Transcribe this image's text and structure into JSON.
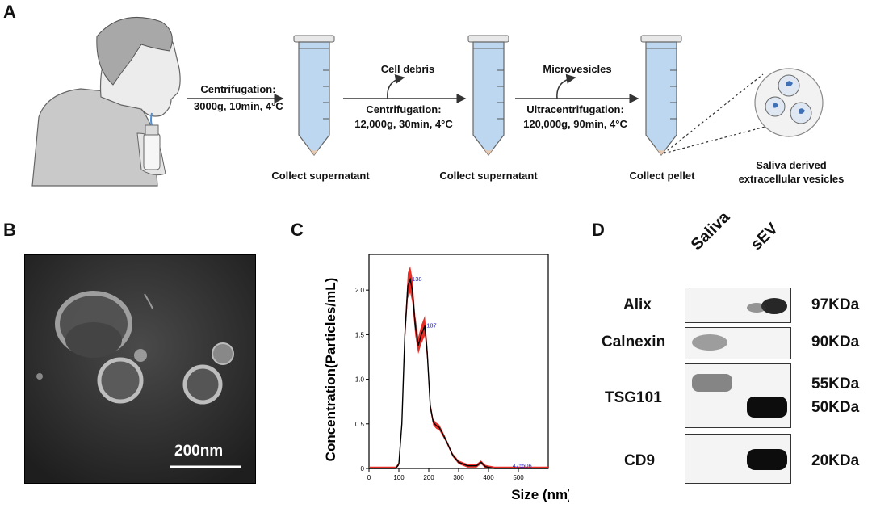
{
  "panels": {
    "a": "A",
    "b": "B",
    "c": "C",
    "d": "D"
  },
  "panel_a": {
    "step1": {
      "line1": "Centrifugation:",
      "line2": "3000g, 10min, 4°C"
    },
    "step2": {
      "byproduct": "Cell debris",
      "line1": "Centrifugation:",
      "line2": "12,000g, 30min, 4°C"
    },
    "step3": {
      "byproduct": "Microvesicles",
      "line1": "Ultracentrifugation:",
      "line2": "120,000g, 90min, 4°C"
    },
    "tube1_caption": "Collect supernatant",
    "tube2_caption": "Collect supernatant",
    "tube3_caption": "Collect pellet",
    "result_line1": "Saliva derived",
    "result_line2": "extracellular vesicles"
  },
  "panel_b": {
    "scale_bar_label": "200nm"
  },
  "chart_data": {
    "type": "line",
    "title": "",
    "xlabel": "Size (nm)",
    "ylabel": "Concentration(Particles/mL)",
    "xlim": [
      0,
      600
    ],
    "ylim": [
      0,
      2.4
    ],
    "xticks": [
      0,
      100,
      200,
      300,
      400,
      500
    ],
    "yticks": [
      0,
      0.5,
      1.0,
      1.5,
      2.0
    ],
    "xtick_labels": [
      "0",
      "100",
      "200",
      "300",
      "400",
      "500"
    ],
    "ytick_labels": [
      "0",
      "0.5",
      "1.0",
      "1.5",
      "2.0"
    ],
    "series": [
      {
        "x": [
          0,
          90,
          100,
          110,
          120,
          130,
          138,
          145,
          155,
          165,
          175,
          187,
          195,
          205,
          215,
          225,
          235,
          245,
          260,
          280,
          300,
          330,
          360,
          375,
          390,
          420,
          470,
          506,
          600
        ],
        "y": [
          0,
          0,
          0.05,
          0.5,
          1.5,
          2.05,
          2.12,
          2.0,
          1.6,
          1.38,
          1.5,
          1.6,
          1.3,
          0.7,
          0.52,
          0.48,
          0.46,
          0.4,
          0.3,
          0.15,
          0.07,
          0.03,
          0.03,
          0.07,
          0.02,
          0.0,
          0.0,
          0.0,
          0.0
        ],
        "color": "#000000",
        "band_color": "#e8231c"
      }
    ],
    "peak_labels": [
      {
        "x": 138,
        "y": 2.12,
        "text": "138"
      },
      {
        "x": 187,
        "y": 1.6,
        "text": "187"
      },
      {
        "x": 475,
        "y": 0.0,
        "text": "475"
      },
      {
        "x": 506,
        "y": 0.0,
        "text": "506"
      }
    ],
    "peak_label_color": "#2222dd"
  },
  "panel_d": {
    "columns": [
      "Saliva",
      "sEV"
    ],
    "rows": [
      {
        "name": "Alix",
        "kda": [
          "97KDa"
        ]
      },
      {
        "name": "Calnexin",
        "kda": [
          "90KDa"
        ]
      },
      {
        "name": "TSG101",
        "kda": [
          "55KDa",
          "50KDa"
        ]
      },
      {
        "name": "CD9",
        "kda": [
          "20KDa"
        ]
      }
    ]
  }
}
